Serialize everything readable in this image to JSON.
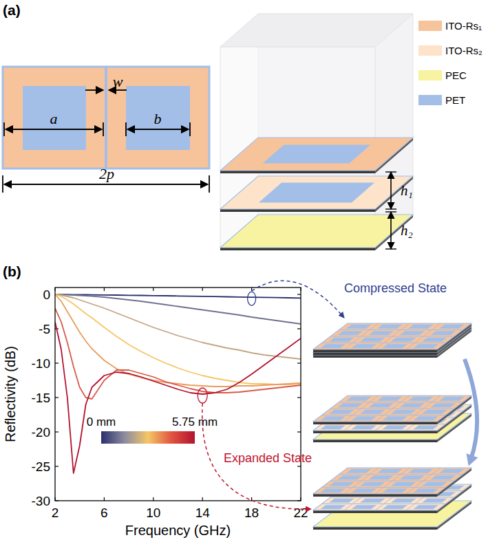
{
  "panels": [
    "(a)",
    "(b)"
  ],
  "diagram": {
    "dimensions": {
      "a": "a",
      "b": "b",
      "w": "w",
      "period": "2p",
      "h1": "h₁",
      "h2": "h₂"
    },
    "materials": [
      {
        "label": "ITO-Rs₁",
        "color": "#f7c39b"
      },
      {
        "label": "ITO-Rs₂",
        "color": "#fde3c9"
      },
      {
        "label": "PEC",
        "color": "#f7f3a0"
      },
      {
        "label": "PET",
        "color": "#a3bfe7"
      }
    ],
    "states": [
      "Compressed State",
      "Expanded State"
    ]
  },
  "chart_data": {
    "type": "line",
    "xlabel": "Frequency (GHz)",
    "ylabel": "Reflectivity (dB)",
    "xlim": [
      2,
      22
    ],
    "ylim": [
      -30,
      1
    ],
    "xticks": [
      2,
      6,
      10,
      14,
      18,
      22
    ],
    "yticks": [
      0,
      -5,
      -10,
      -15,
      -20,
      -25,
      -30
    ],
    "x": [
      2,
      2.5,
      3,
      3.5,
      4,
      4.5,
      5,
      6,
      7,
      8,
      9,
      10,
      11,
      12,
      13,
      14,
      15,
      16,
      17,
      18,
      19,
      20,
      21,
      22
    ],
    "series": [
      {
        "color": "#2b2f6c",
        "values": [
          0,
          -0.01,
          -0.02,
          -0.03,
          -0.04,
          -0.05,
          -0.06,
          -0.08,
          -0.1,
          -0.13,
          -0.15,
          -0.18,
          -0.2,
          -0.23,
          -0.26,
          -0.29,
          -0.32,
          -0.35,
          -0.38,
          -0.41,
          -0.44,
          -0.47,
          -0.5,
          -0.53
        ]
      },
      {
        "color": "#6f7190",
        "values": [
          0,
          -0.02,
          -0.05,
          -0.1,
          -0.15,
          -0.2,
          -0.26,
          -0.4,
          -0.6,
          -0.8,
          -1.0,
          -1.25,
          -1.5,
          -1.75,
          -2.0,
          -2.25,
          -2.5,
          -2.75,
          -3.0,
          -3.3,
          -3.55,
          -3.8,
          -4.05,
          -4.3
        ]
      },
      {
        "color": "#c2a584",
        "values": [
          0,
          -0.1,
          -0.3,
          -0.5,
          -0.8,
          -1.1,
          -1.4,
          -2.0,
          -2.7,
          -3.4,
          -4.1,
          -4.8,
          -5.4,
          -6.0,
          -6.5,
          -7.0,
          -7.4,
          -7.8,
          -8.1,
          -8.5,
          -8.8,
          -9.0,
          -9.2,
          -9.4
        ]
      },
      {
        "color": "#f5c566",
        "values": [
          0,
          -0.3,
          -0.8,
          -1.4,
          -2.1,
          -2.8,
          -3.4,
          -4.8,
          -6.1,
          -7.3,
          -8.3,
          -9.2,
          -10.0,
          -10.7,
          -11.3,
          -11.8,
          -12.2,
          -12.5,
          -12.8,
          -13.0,
          -13.0,
          -13.1,
          -13.1,
          -13.0
        ]
      },
      {
        "color": "#eb9b5d",
        "values": [
          0,
          -1.0,
          -2.5,
          -4.0,
          -5.5,
          -6.8,
          -7.9,
          -9.6,
          -10.8,
          -11.6,
          -12.1,
          -12.5,
          -12.8,
          -13.0,
          -13.2,
          -13.3,
          -13.4,
          -13.4,
          -13.3,
          -13.3,
          -13.2,
          -13.1,
          -13.0,
          -12.9
        ]
      },
      {
        "color": "#d75a48",
        "values": [
          -2.0,
          -4.0,
          -7.0,
          -10.5,
          -13.5,
          -15.0,
          -15.2,
          -12.5,
          -11.0,
          -11.0,
          -11.5,
          -12.0,
          -12.7,
          -13.2,
          -13.7,
          -14.1,
          -14.3,
          -14.3,
          -14.2,
          -14.0,
          -13.8,
          -13.6,
          -13.4,
          -13.2
        ]
      },
      {
        "color": "#b3122f",
        "values": [
          -4.0,
          -8.0,
          -15.0,
          -26.0,
          -22.0,
          -16.0,
          -13.5,
          -11.8,
          -11.3,
          -11.5,
          -12.0,
          -12.6,
          -13.2,
          -13.8,
          -14.3,
          -14.5,
          -14.3,
          -13.8,
          -12.8,
          -11.6,
          -10.3,
          -9.0,
          -7.7,
          -6.4
        ]
      }
    ],
    "colorbar": {
      "lim": [
        0,
        5.75
      ],
      "ticks": [
        {
          "value": 0,
          "label": "0 mm"
        },
        {
          "value": 5.75,
          "label": "5.75 mm"
        }
      ],
      "colors": [
        "#2b2f6c",
        "#8c8ba0",
        "#f6c667",
        "#e0553f",
        "#b3122f"
      ]
    },
    "annotations": [
      {
        "text": "Compressed State",
        "color": "#2f3e8f"
      },
      {
        "text": "Expanded State",
        "color": "#c0142e"
      }
    ]
  }
}
